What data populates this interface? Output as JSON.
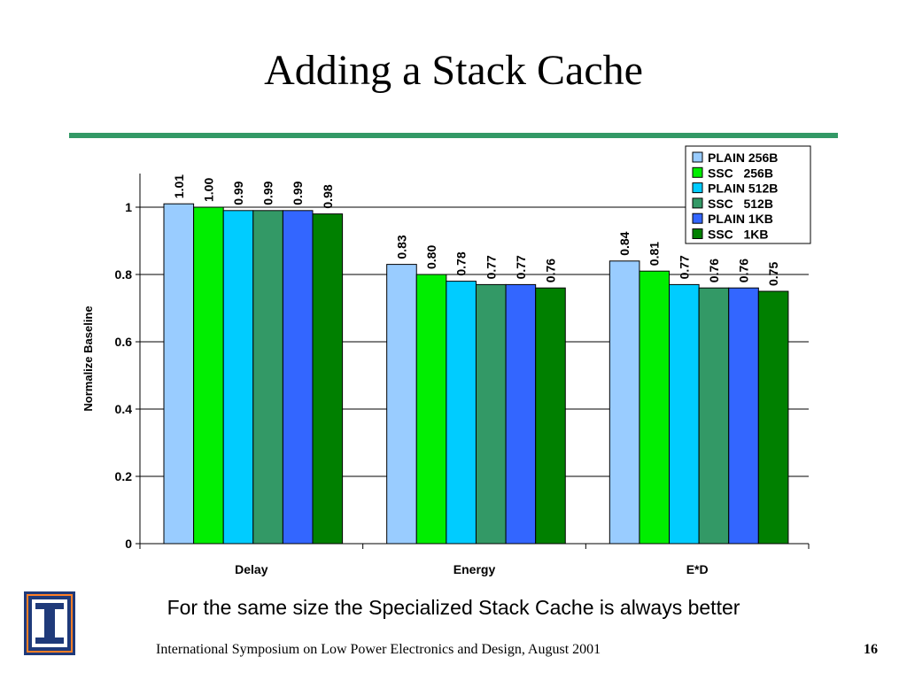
{
  "slide": {
    "title": "Adding a Stack Cache",
    "caption": "For the same size the Specialized Stack Cache is always better",
    "footer": "International Symposium on Low Power Electronics and Design,  August 2001",
    "page_number": "16",
    "logo_icon": "university-logo-icon"
  },
  "chart_data": {
    "type": "bar",
    "title": "",
    "xlabel": "",
    "ylabel": "Normalize Baseline",
    "ylim": [
      0,
      1.1
    ],
    "yticks": [
      0,
      0.2,
      0.4,
      0.6,
      0.8,
      1
    ],
    "ytick_labels": [
      "0",
      "0.2",
      "0.4",
      "0.6",
      "0.8",
      "1"
    ],
    "grid": true,
    "legend_position": "top-right",
    "categories": [
      "Delay",
      "Energy",
      "E*D"
    ],
    "series": [
      {
        "name": "PLAIN 256B",
        "color": "#99ccff",
        "values": [
          1.01,
          0.83,
          0.84
        ],
        "labels": [
          "1.01",
          "0.83",
          "0.84"
        ]
      },
      {
        "name": "SSC   256B",
        "color": "#00ee00",
        "values": [
          1.0,
          0.8,
          0.81
        ],
        "labels": [
          "1.00",
          "0.80",
          "0.81"
        ]
      },
      {
        "name": "PLAIN 512B",
        "color": "#00ccff",
        "values": [
          0.99,
          0.78,
          0.77
        ],
        "labels": [
          "0.99",
          "0.78",
          "0.77"
        ]
      },
      {
        "name": "SSC   512B",
        "color": "#339966",
        "values": [
          0.99,
          0.77,
          0.76
        ],
        "labels": [
          "0.99",
          "0.77",
          "0.76"
        ]
      },
      {
        "name": "PLAIN 1KB",
        "color": "#3366ff",
        "values": [
          0.99,
          0.77,
          0.76
        ],
        "labels": [
          "0.99",
          "0.77",
          "0.76"
        ]
      },
      {
        "name": "SSC   1KB",
        "color": "#008000",
        "values": [
          0.98,
          0.76,
          0.75
        ],
        "labels": [
          "0.98",
          "0.76",
          "0.75"
        ]
      }
    ]
  }
}
